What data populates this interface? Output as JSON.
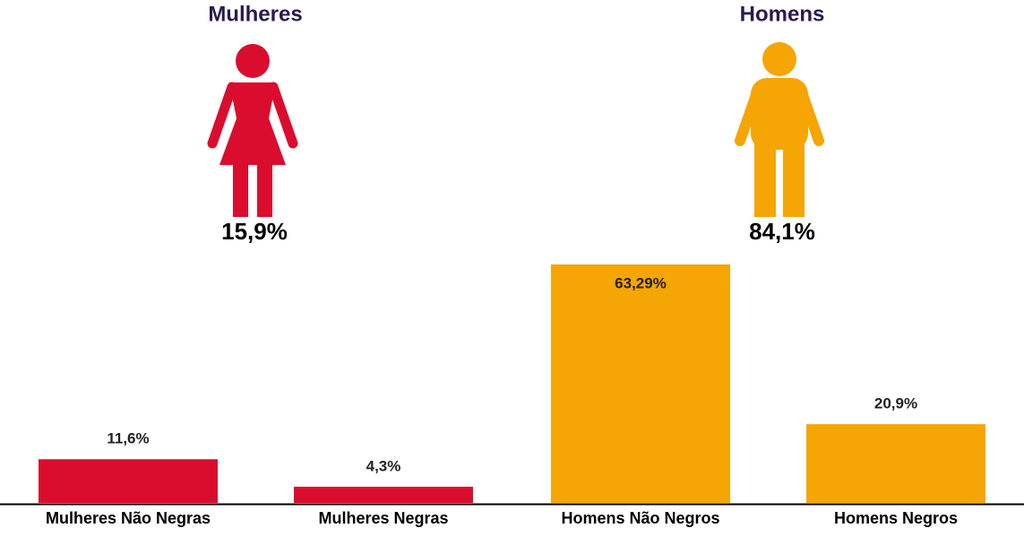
{
  "groups": [
    {
      "title": "Mulheres",
      "share": "15,9%",
      "color": "#da0d2f"
    },
    {
      "title": "Homens",
      "share": "84,1%",
      "color": "#f5a504"
    }
  ],
  "chart_data": {
    "type": "bar",
    "categories": [
      "Mulheres Não Negras",
      "Mulheres Negras",
      "Homens Não Negros",
      "Homens Negros"
    ],
    "values": [
      11.6,
      4.3,
      63.29,
      20.9
    ],
    "value_labels": [
      "11,6%",
      "4,3%",
      "63,29%",
      "20,9%"
    ],
    "colors": [
      "#da0d2f",
      "#da0d2f",
      "#f5a504",
      "#f5a504"
    ]
  }
}
